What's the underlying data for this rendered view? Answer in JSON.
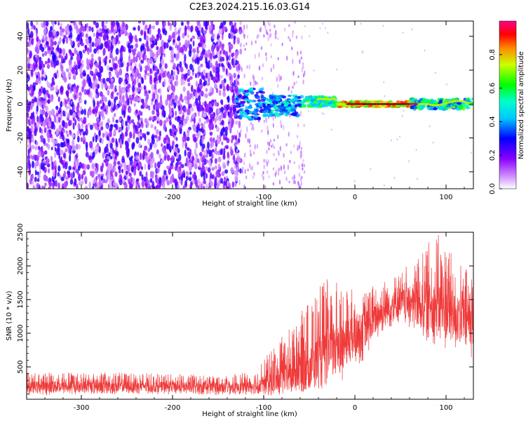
{
  "title": "C2E3.2024.215.16.03.G14",
  "chart_data": [
    {
      "type": "heatmap",
      "xlabel": "Height of straight line (km)",
      "ylabel": "Frequency (Hz)",
      "xlim": [
        -360,
        130
      ],
      "ylim": [
        -50,
        49
      ],
      "xticks": [
        -300,
        -200,
        -100,
        0,
        100
      ],
      "yticks": [
        -40,
        -20,
        0,
        20,
        40
      ],
      "grid": false,
      "colorbar": {
        "label": "Normalized spectral amplitude",
        "range": [
          0,
          1
        ],
        "ticks": [
          0.0,
          0.2,
          0.4,
          0.6,
          0.8
        ],
        "colormap": [
          "#ffffff",
          "#8800ff",
          "#0000ff",
          "#00ffff",
          "#00ff00",
          "#ffff00",
          "#ff0000",
          "#ff0088"
        ]
      },
      "regions": [
        {
          "x": [
            -360,
            -130
          ],
          "freq_range": [
            -50,
            49
          ],
          "amplitude": 0.1,
          "description": "broadband"
        },
        {
          "x": [
            -130,
            -100
          ],
          "freq_range": [
            -12,
            10
          ],
          "amplitude": 0.25
        },
        {
          "x": [
            -100,
            -60
          ],
          "freq_range": [
            -8,
            6
          ],
          "amplitude": 0.3
        },
        {
          "x": [
            -60,
            -20
          ],
          "freq_range": [
            -2,
            4
          ],
          "amplitude": 0.5
        },
        {
          "x": [
            -20,
            60
          ],
          "freq_range": [
            -1,
            1
          ],
          "amplitude": 0.9
        },
        {
          "x": [
            60,
            130
          ],
          "freq_range": [
            -3,
            3
          ],
          "amplitude": 0.6
        }
      ]
    },
    {
      "type": "line",
      "xlabel": "Height of straight line (km)",
      "ylabel": "SNR (10 * v/v)",
      "xlim": [
        -360,
        130
      ],
      "ylim": [
        20,
        2500
      ],
      "xticks": [
        -300,
        -200,
        -100,
        0,
        100
      ],
      "yticks": [
        500,
        1000,
        1500,
        2000,
        2500
      ],
      "color": "#ef3a3a",
      "grid": false,
      "envelope": {
        "x": [
          -360,
          -300,
          -200,
          -150,
          -110,
          -90,
          -70,
          -50,
          -30,
          -10,
          10,
          30,
          50,
          70,
          90,
          110,
          130
        ],
        "mean": [
          200,
          210,
          200,
          190,
          200,
          250,
          350,
          480,
          650,
          850,
          1050,
          1300,
          1450,
          1400,
          1350,
          1250,
          1150
        ],
        "low": [
          80,
          90,
          90,
          80,
          90,
          60,
          80,
          120,
          150,
          300,
          600,
          1000,
          1150,
          950,
          800,
          700,
          600
        ],
        "high": [
          420,
          430,
          400,
          380,
          420,
          800,
          1100,
          1500,
          1850,
          1700,
          1650,
          1800,
          1900,
          2200,
          2500,
          2100,
          1900
        ]
      }
    }
  ]
}
